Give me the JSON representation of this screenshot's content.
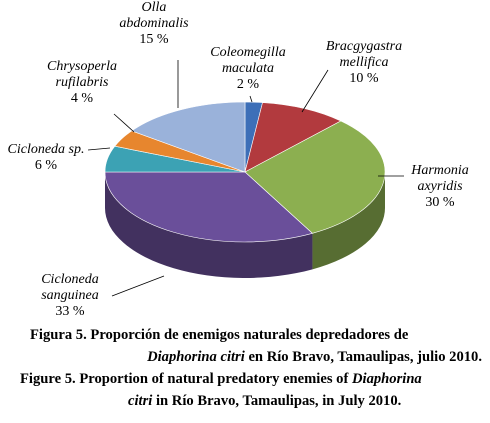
{
  "chart_data": {
    "type": "pie",
    "slices": [
      {
        "label_lines": [
          "Coleomegilla",
          "maculata"
        ],
        "pct_label": "2 %",
        "value": 2,
        "color": "#3D6FB8"
      },
      {
        "label_lines": [
          "Bracgygastra",
          "mellifica"
        ],
        "pct_label": "10 %",
        "value": 10,
        "color": "#B23A3E"
      },
      {
        "label_lines": [
          "Harmonia",
          "axyridis"
        ],
        "pct_label": "30 %",
        "value": 30,
        "color": "#8CAF50"
      },
      {
        "label_lines": [
          "Cicloneda",
          "sanguinea"
        ],
        "pct_label": "33 %",
        "value": 33,
        "color": "#6A4F9A"
      },
      {
        "label_lines": [
          "Cicloneda sp."
        ],
        "pct_label": "6 %",
        "value": 6,
        "color": "#3CA2B4"
      },
      {
        "label_lines": [
          "Chrysoperla",
          "rufilabris"
        ],
        "pct_label": "4 %",
        "value": 4,
        "color": "#E7862E"
      },
      {
        "label_lines": [
          "Olla",
          "abdominalis"
        ],
        "pct_label": "15 %",
        "value": 15,
        "color": "#9AB2DA"
      }
    ]
  },
  "caption": {
    "es_prefix": "Figura 5. Proporción de enemigos naturales depredadores de",
    "es_species": "Diaphorina citri",
    "es_suffix": " en Río Bravo, Tamaulipas, julio 2010.",
    "en_prefix": "Figure 5. Proportion of natural predatory enemies of ",
    "en_species_1": "Diaphorina",
    "en_species_2": "citri",
    "en_suffix": " in Río Bravo, Tamaulipas, in July 2010."
  }
}
